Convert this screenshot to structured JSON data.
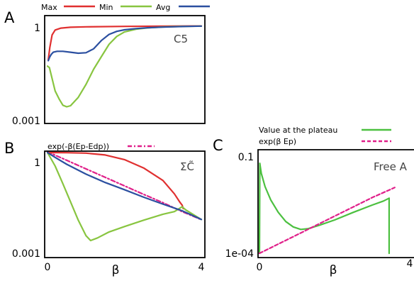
{
  "colors": {
    "max": "#e03030",
    "min": "#88c540",
    "avg": "#2b4fa0",
    "pink": "#e0208a",
    "green": "#4cc040"
  },
  "chart_data": [
    {
      "panel": "A",
      "type": "line",
      "annotation": "C5",
      "yscale": "log",
      "xlim": [
        0,
        4
      ],
      "ylim": [
        0.001,
        1
      ],
      "yticks": [
        {
          "label": "1",
          "value": 1
        },
        {
          "label": "0.001",
          "value": 0.001
        }
      ],
      "xticks": [],
      "xlabel": "",
      "legend": {
        "placement": "top",
        "entries": [
          "Max",
          "Min",
          "Avg"
        ]
      },
      "series": [
        {
          "name": "Max",
          "color": "#e03030",
          "points": [
            [
              0.02,
              0.08
            ],
            [
              0.06,
              0.2
            ],
            [
              0.12,
              0.5
            ],
            [
              0.2,
              0.72
            ],
            [
              0.35,
              0.83
            ],
            [
              0.6,
              0.88
            ],
            [
              1.0,
              0.91
            ],
            [
              2.0,
              0.94
            ],
            [
              3.0,
              0.96
            ],
            [
              4.0,
              0.97
            ]
          ]
        },
        {
          "name": "Min",
          "color": "#88c540",
          "points": [
            [
              0.0,
              0.05
            ],
            [
              0.05,
              0.045
            ],
            [
              0.12,
              0.02
            ],
            [
              0.2,
              0.008
            ],
            [
              0.3,
              0.0045
            ],
            [
              0.4,
              0.0028
            ],
            [
              0.5,
              0.0025
            ],
            [
              0.6,
              0.0027
            ],
            [
              0.8,
              0.005
            ],
            [
              1.0,
              0.013
            ],
            [
              1.2,
              0.04
            ],
            [
              1.4,
              0.1
            ],
            [
              1.6,
              0.25
            ],
            [
              1.8,
              0.45
            ],
            [
              2.0,
              0.62
            ],
            [
              2.3,
              0.76
            ],
            [
              2.6,
              0.84
            ],
            [
              3.0,
              0.9
            ],
            [
              3.5,
              0.94
            ],
            [
              4.0,
              0.96
            ]
          ]
        },
        {
          "name": "Avg",
          "color": "#2b4fa0",
          "points": [
            [
              0.02,
              0.075
            ],
            [
              0.06,
              0.1
            ],
            [
              0.1,
              0.12
            ],
            [
              0.15,
              0.14
            ],
            [
              0.25,
              0.15
            ],
            [
              0.4,
              0.15
            ],
            [
              0.6,
              0.14
            ],
            [
              0.8,
              0.13
            ],
            [
              1.0,
              0.135
            ],
            [
              1.2,
              0.18
            ],
            [
              1.4,
              0.33
            ],
            [
              1.6,
              0.52
            ],
            [
              1.8,
              0.65
            ],
            [
              2.0,
              0.73
            ],
            [
              2.3,
              0.8
            ],
            [
              2.6,
              0.85
            ],
            [
              3.0,
              0.89
            ],
            [
              3.5,
              0.93
            ],
            [
              4.0,
              0.96
            ]
          ]
        }
      ]
    },
    {
      "panel": "B",
      "type": "line",
      "annotation": "ΣC̃",
      "yscale": "log",
      "xlim": [
        0,
        4
      ],
      "ylim": [
        0.001,
        1
      ],
      "yticks": [
        {
          "label": "1",
          "value": 1
        },
        {
          "label": "0.001",
          "value": 0.001
        }
      ],
      "xticks": [
        {
          "label": "0",
          "value": 0
        },
        {
          "label": "4",
          "value": 4
        }
      ],
      "xlabel": "β",
      "legend": {
        "placement": "top",
        "entries": [
          "exp(-β(Ep-Edp))"
        ]
      },
      "series": [
        {
          "name": "exp(-β(Ep-Edp))",
          "color": "#e0208a",
          "dashed": true,
          "points": [
            [
              0,
              1.05
            ],
            [
              0.5,
              0.59
            ],
            [
              1.0,
              0.33
            ],
            [
              1.5,
              0.185
            ],
            [
              2.0,
              0.104
            ],
            [
              2.5,
              0.058
            ],
            [
              3.0,
              0.033
            ],
            [
              3.5,
              0.018
            ],
            [
              4.0,
              0.0104
            ]
          ]
        },
        {
          "name": "Max",
          "color": "#e03030",
          "points": [
            [
              0,
              1.0
            ],
            [
              0.5,
              0.99
            ],
            [
              1.0,
              0.96
            ],
            [
              1.5,
              0.85
            ],
            [
              2.0,
              0.62
            ],
            [
              2.5,
              0.35
            ],
            [
              3.0,
              0.15
            ],
            [
              3.3,
              0.06
            ],
            [
              3.45,
              0.033
            ],
            [
              3.5,
              0.028
            ],
            [
              3.53,
              0.022
            ]
          ]
        },
        {
          "name": "Min",
          "color": "#88c540",
          "points": [
            [
              0,
              1.0
            ],
            [
              0.2,
              0.4
            ],
            [
              0.4,
              0.12
            ],
            [
              0.6,
              0.035
            ],
            [
              0.8,
              0.01
            ],
            [
              1.0,
              0.0035
            ],
            [
              1.12,
              0.0025
            ],
            [
              1.3,
              0.003
            ],
            [
              1.6,
              0.0045
            ],
            [
              2.0,
              0.0065
            ],
            [
              2.5,
              0.01
            ],
            [
              3.0,
              0.015
            ],
            [
              3.3,
              0.018
            ],
            [
              3.5,
              0.025
            ],
            [
              3.6,
              0.02
            ],
            [
              4.0,
              0.0105
            ]
          ]
        },
        {
          "name": "Avg",
          "color": "#2b4fa0",
          "points": [
            [
              0,
              1.0
            ],
            [
              0.2,
              0.72
            ],
            [
              0.5,
              0.45
            ],
            [
              1.0,
              0.23
            ],
            [
              1.5,
              0.13
            ],
            [
              2.0,
              0.08
            ],
            [
              2.5,
              0.048
            ],
            [
              3.0,
              0.03
            ],
            [
              3.5,
              0.019
            ],
            [
              4.0,
              0.0105
            ]
          ]
        }
      ]
    },
    {
      "panel": "C",
      "type": "line",
      "annotation": "Free A",
      "yscale": "log",
      "xlim": [
        0,
        4
      ],
      "ylim": [
        0.0001,
        0.1
      ],
      "yticks": [
        {
          "label": "0.1",
          "value": 0.1
        },
        {
          "label": "1e-04",
          "value": 0.0001
        }
      ],
      "xticks": [
        {
          "label": "0",
          "value": 0
        },
        {
          "label": "4",
          "value": 4
        }
      ],
      "xlabel": "β",
      "legend": {
        "placement": "top",
        "entries": [
          "Value at the plateau",
          "exp(β Ep)"
        ]
      },
      "series": [
        {
          "name": "Value at the plateau",
          "color": "#4cc040",
          "points": [
            [
              0,
              0.0001
            ],
            [
              0.01,
              0.05
            ],
            [
              0.05,
              0.025
            ],
            [
              0.15,
              0.01
            ],
            [
              0.3,
              0.004
            ],
            [
              0.5,
              0.0017
            ],
            [
              0.7,
              0.0009
            ],
            [
              0.9,
              0.00062
            ],
            [
              1.1,
              0.00052
            ],
            [
              1.3,
              0.00055
            ],
            [
              1.6,
              0.0007
            ],
            [
              2.0,
              0.001
            ],
            [
              2.5,
              0.0017
            ],
            [
              3.0,
              0.0028
            ],
            [
              3.3,
              0.0037
            ],
            [
              3.45,
              0.0045
            ],
            [
              3.45,
              0.0001
            ]
          ]
        },
        {
          "name": "exp(β Ep)",
          "color": "#e0208a",
          "dashed": true,
          "points": [
            [
              0,
              0.0001
            ],
            [
              1.0,
              0.00036
            ],
            [
              2.0,
              0.0013
            ],
            [
              3.0,
              0.0047
            ],
            [
              3.6,
              0.0094
            ]
          ]
        }
      ]
    }
  ]
}
